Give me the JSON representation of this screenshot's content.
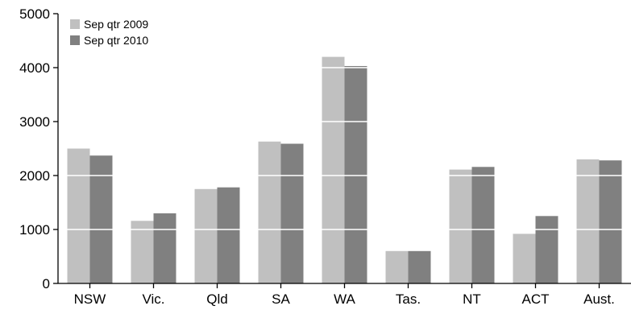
{
  "chart_data": {
    "type": "bar",
    "title": "",
    "xlabel": "",
    "ylabel": "",
    "categories": [
      "NSW",
      "Vic.",
      "Qld",
      "SA",
      "WA",
      "Tas.",
      "NT",
      "ACT",
      "Aust."
    ],
    "series": [
      {
        "name": "Sep qtr 2009",
        "color": "#c0c0c0",
        "values": [
          2500,
          1160,
          1750,
          2630,
          4200,
          600,
          2110,
          920,
          2300
        ]
      },
      {
        "name": "Sep qtr 2010",
        "color": "#808080",
        "values": [
          2370,
          1300,
          1780,
          2590,
          4030,
          600,
          2160,
          1250,
          2280
        ]
      }
    ],
    "ylim": [
      0,
      5000
    ],
    "yticks": [
      "0",
      "1000",
      "2000",
      "3000",
      "4000",
      "5000"
    ],
    "grid": true,
    "grid_color": "#ffffff",
    "legend_position": "top-left"
  }
}
